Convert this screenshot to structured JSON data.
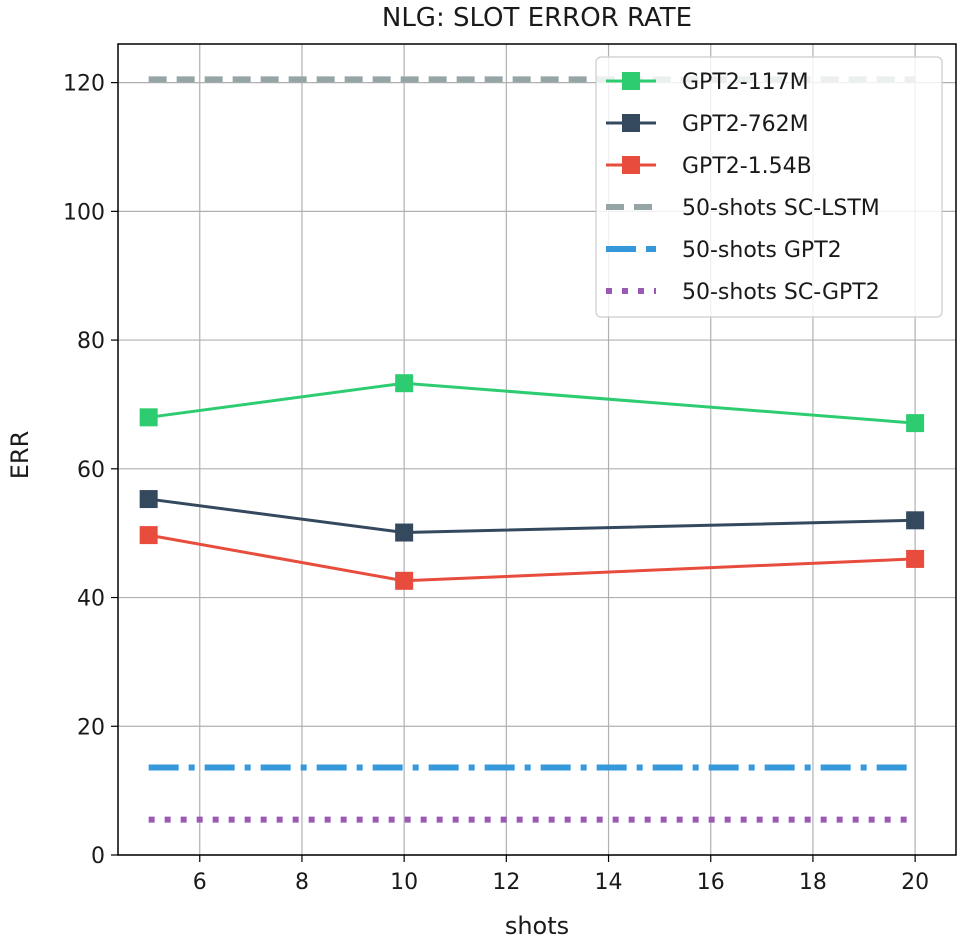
{
  "chart_data": {
    "type": "line",
    "title": "NLG: SLOT ERROR RATE",
    "xlabel": "shots",
    "ylabel": "ERR",
    "x": [
      5,
      10,
      20
    ],
    "xlim": [
      4.4,
      20.8
    ],
    "ylim": [
      0,
      126
    ],
    "xticks": [
      6,
      8,
      10,
      12,
      14,
      16,
      18,
      20
    ],
    "yticks": [
      0,
      20,
      40,
      60,
      80,
      100,
      120
    ],
    "grid": true,
    "legend_position": "top-right",
    "series": [
      {
        "name": "GPT2-117M",
        "values": [
          68.0,
          73.3,
          67.1
        ],
        "color": "#2ecc71",
        "style": "solid",
        "marker": "square"
      },
      {
        "name": "GPT2-762M",
        "values": [
          55.3,
          50.1,
          52.0
        ],
        "color": "#34495e",
        "style": "solid",
        "marker": "square"
      },
      {
        "name": "GPT2-1.54B",
        "values": [
          49.7,
          42.6,
          46.0
        ],
        "color": "#e74c3c",
        "style": "solid",
        "marker": "square"
      },
      {
        "name": "50-shots SC-LSTM",
        "values": [
          120.5,
          120.5,
          120.5
        ],
        "color": "#95a5a6",
        "style": "dashed",
        "marker": "none"
      },
      {
        "name": "50-shots GPT2",
        "values": [
          13.6,
          13.6,
          13.6
        ],
        "color": "#3498db",
        "style": "dashdot",
        "marker": "none"
      },
      {
        "name": "50-shots SC-GPT2",
        "values": [
          5.5,
          5.5,
          5.5
        ],
        "color": "#9b59b6",
        "style": "dotted",
        "marker": "none"
      }
    ]
  }
}
